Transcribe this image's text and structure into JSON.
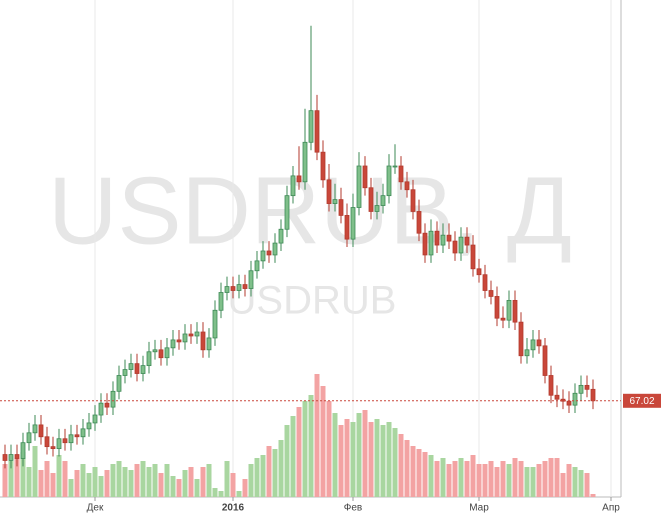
{
  "chart_data": {
    "type": "candlestick",
    "title": "USDRUB, Д",
    "subtitle": "USDRUB",
    "categories": [
      null,
      null,
      null,
      null,
      null,
      null,
      null,
      null,
      null,
      null,
      null,
      null,
      null,
      null,
      null,
      "Дек",
      null,
      null,
      null,
      null,
      null,
      null,
      null,
      null,
      null,
      null,
      null,
      null,
      null,
      null,
      null,
      null,
      null,
      null,
      null,
      null,
      null,
      null,
      "2016",
      null,
      null,
      null,
      null,
      null,
      null,
      null,
      null,
      null,
      null,
      null,
      null,
      null,
      null,
      null,
      null,
      null,
      null,
      null,
      "Фев",
      null,
      null,
      null,
      null,
      null,
      null,
      null,
      null,
      null,
      null,
      null,
      null,
      null,
      null,
      null,
      null,
      null,
      null,
      null,
      null,
      "Мар",
      null,
      null,
      null,
      null,
      null,
      null,
      null,
      null,
      null,
      null,
      null,
      null,
      null,
      null,
      null,
      null,
      null,
      null,
      null,
      null,
      null,
      "Апр"
    ],
    "open": [
      64.3,
      64.0,
      64.3,
      64.1,
      64.9,
      65.4,
      65.8,
      65.2,
      64.7,
      64.6,
      65.1,
      64.9,
      65.3,
      65.2,
      65.6,
      65.9,
      66.3,
      66.9,
      66.7,
      67.5,
      68.3,
      68.6,
      68.9,
      68.4,
      68.8,
      69.5,
      69.6,
      69.2,
      69.7,
      70.1,
      70.0,
      70.4,
      70.3,
      70.5,
      69.6,
      70.2,
      71.6,
      72.5,
      72.8,
      72.6,
      72.9,
      72.7,
      73.6,
      74.1,
      74.6,
      74.4,
      75.0,
      75.7,
      77.4,
      78.4,
      78.1,
      80.1,
      81.7,
      79.6,
      78.2,
      77.0,
      77.2,
      76.4,
      75.2,
      76.8,
      78.9,
      77.8,
      76.6,
      76.9,
      77.4,
      78.9,
      78.9,
      78.1,
      77.7,
      76.6,
      75.5,
      74.4,
      75.6,
      74.9,
      75.4,
      75.1,
      74.5,
      75.3,
      74.9,
      73.7,
      73.4,
      72.6,
      72.3,
      71.2,
      71.1,
      72.1,
      71.0,
      69.3,
      69.6,
      70.1,
      69.8,
      68.3,
      67.3,
      67.1,
      67.0,
      66.8,
      67.4,
      67.8,
      67.6,
      null,
      null,
      null
    ],
    "high": [
      64.8,
      64.8,
      64.8,
      65.4,
      65.9,
      66.3,
      66.3,
      65.7,
      65.2,
      65.6,
      65.6,
      65.8,
      65.8,
      66.1,
      66.4,
      66.8,
      67.4,
      67.4,
      68.0,
      68.8,
      69.1,
      69.4,
      69.4,
      69.3,
      70.0,
      70.1,
      70.1,
      70.2,
      70.6,
      70.6,
      70.9,
      70.9,
      71.0,
      71.0,
      70.7,
      72.1,
      73.0,
      73.3,
      73.3,
      73.4,
      73.4,
      74.1,
      74.6,
      75.1,
      75.1,
      75.5,
      76.2,
      77.9,
      78.9,
      79.9,
      81.8,
      86.0,
      82.5,
      80.2,
      79.0,
      78.0,
      77.8,
      77.0,
      77.5,
      79.6,
      79.4,
      78.3,
      77.6,
      78.0,
      79.5,
      80.0,
      79.4,
      78.6,
      78.2,
      77.2,
      76.0,
      76.2,
      76.1,
      76.0,
      76.0,
      75.6,
      75.8,
      75.8,
      75.4,
      74.2,
      73.9,
      73.1,
      72.8,
      71.8,
      72.6,
      72.6,
      71.5,
      70.2,
      70.6,
      70.6,
      70.2,
      68.8,
      67.8,
      67.6,
      67.5,
      67.9,
      68.3,
      68.3,
      68.1,
      null,
      null,
      null
    ],
    "low": [
      63.6,
      63.6,
      63.7,
      63.7,
      64.5,
      65.0,
      64.8,
      64.3,
      64.2,
      64.2,
      64.5,
      64.5,
      64.8,
      64.8,
      65.2,
      65.5,
      65.9,
      66.3,
      66.3,
      67.1,
      67.9,
      68.2,
      68.0,
      68.0,
      68.4,
      69.1,
      68.8,
      68.8,
      69.3,
      69.6,
      69.6,
      69.9,
      69.9,
      69.2,
      69.2,
      69.8,
      71.2,
      72.1,
      72.2,
      72.2,
      72.3,
      72.3,
      73.2,
      73.7,
      74.0,
      74.0,
      74.6,
      75.3,
      77.0,
      77.7,
      77.7,
      79.7,
      79.2,
      77.8,
      76.6,
      76.6,
      76.0,
      74.8,
      74.8,
      76.4,
      77.4,
      76.2,
      76.2,
      76.5,
      77.0,
      78.5,
      77.7,
      77.3,
      76.2,
      75.1,
      74.0,
      74.0,
      74.5,
      74.5,
      74.7,
      74.1,
      74.1,
      74.5,
      73.3,
      73.0,
      72.2,
      71.9,
      70.8,
      70.7,
      70.7,
      70.6,
      68.9,
      68.9,
      69.2,
      69.4,
      67.9,
      66.9,
      66.7,
      66.6,
      66.4,
      66.4,
      67.0,
      67.2,
      66.6,
      null,
      null,
      null
    ],
    "close": [
      64.0,
      64.3,
      64.1,
      64.9,
      65.4,
      65.8,
      65.2,
      64.7,
      64.6,
      65.1,
      64.9,
      65.3,
      65.2,
      65.6,
      65.9,
      66.3,
      66.9,
      66.7,
      67.5,
      68.3,
      68.6,
      68.9,
      68.4,
      68.8,
      69.5,
      69.6,
      69.2,
      69.7,
      70.1,
      70.0,
      70.4,
      70.3,
      70.5,
      69.6,
      70.2,
      71.6,
      72.5,
      72.8,
      72.6,
      72.9,
      72.7,
      73.6,
      74.1,
      74.6,
      74.4,
      75.0,
      75.7,
      77.4,
      78.4,
      78.1,
      80.1,
      81.7,
      79.6,
      78.2,
      77.0,
      77.2,
      76.4,
      75.2,
      76.8,
      78.9,
      77.8,
      76.6,
      76.9,
      77.4,
      78.9,
      78.9,
      78.1,
      77.7,
      76.6,
      75.5,
      74.4,
      75.6,
      74.9,
      75.4,
      75.1,
      74.5,
      75.3,
      74.9,
      73.7,
      73.4,
      72.6,
      72.3,
      71.2,
      71.1,
      72.1,
      71.0,
      69.3,
      69.6,
      70.1,
      69.8,
      68.3,
      67.3,
      67.1,
      67.0,
      66.8,
      67.4,
      67.8,
      67.6,
      67.02,
      null,
      null,
      null
    ],
    "volume": [
      110,
      120,
      130,
      150,
      100,
      170,
      90,
      120,
      80,
      140,
      120,
      60,
      90,
      110,
      80,
      100,
      70,
      90,
      110,
      120,
      100,
      90,
      110,
      120,
      100,
      110,
      80,
      110,
      70,
      60,
      90,
      100,
      60,
      100,
      110,
      30,
      20,
      120,
      80,
      20,
      60,
      110,
      130,
      140,
      170,
      160,
      190,
      240,
      270,
      300,
      320,
      340,
      410,
      370,
      320,
      280,
      240,
      260,
      250,
      280,
      290,
      250,
      260,
      240,
      250,
      230,
      210,
      190,
      170,
      160,
      150,
      140,
      120,
      130,
      110,
      120,
      130,
      120,
      140,
      110,
      110,
      120,
      100,
      120,
      110,
      130,
      120,
      100,
      100,
      110,
      120,
      130,
      130,
      80,
      110,
      100,
      90,
      80,
      10,
      null,
      null,
      null
    ],
    "ylim": [
      62.0,
      87.3
    ],
    "volume_lim": [
      0,
      500
    ],
    "last_price": 67.02,
    "up_color": "#3e8a56",
    "up_fill": "#7fbf8a",
    "down_color": "#b33a2e",
    "down_fill": "#c9473a",
    "volume_up_color": "#a9d6a0",
    "volume_down_color": "#f3a3a3",
    "last_price_color": "#c9473a",
    "grid": true
  }
}
